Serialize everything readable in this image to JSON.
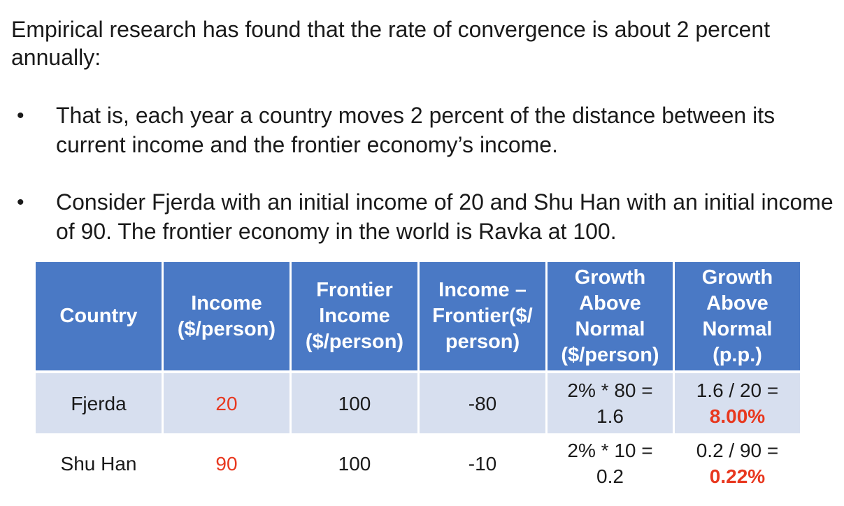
{
  "intro": "Empirical research has found that the rate of convergence is about 2 percent annually:",
  "bullets": [
    {
      "symbol": "•",
      "text": "That is, each year a country moves 2 percent of the distance between its current income and the frontier economy’s income."
    },
    {
      "symbol": "•",
      "text": "Consider Fjerda with an initial income of 20 and Shu Han with an initial income of 90. The frontier economy in the world is Ravka at 100."
    }
  ],
  "table": {
    "headers": [
      "Country",
      "Income ($/person)",
      "Frontier Income ($/person)",
      "Income – Frontier($/ person)",
      "Growth Above Normal ($/person)",
      "Growth Above Normal (p.p.)"
    ],
    "rows": [
      {
        "country": "Fjerda",
        "income": "20",
        "frontier_income": "100",
        "diff": "-80",
        "growth_dollars_line1": "2% * 80 =",
        "growth_dollars_line2": "1.6",
        "growth_pp_line1": "1.6 / 20 =",
        "growth_pp_line2": "8.00%"
      },
      {
        "country": "Shu Han",
        "income": "90",
        "frontier_income": "100",
        "diff": "-10",
        "growth_dollars_line1": "2% * 10 =",
        "growth_dollars_line2": "0.2",
        "growth_pp_line1": "0.2 / 90 =",
        "growth_pp_line2": "0.22%"
      }
    ]
  },
  "colors": {
    "header_bg": "#4a79c5",
    "row_alt_bg": "#d7dfef",
    "highlight": "#e8381f"
  }
}
